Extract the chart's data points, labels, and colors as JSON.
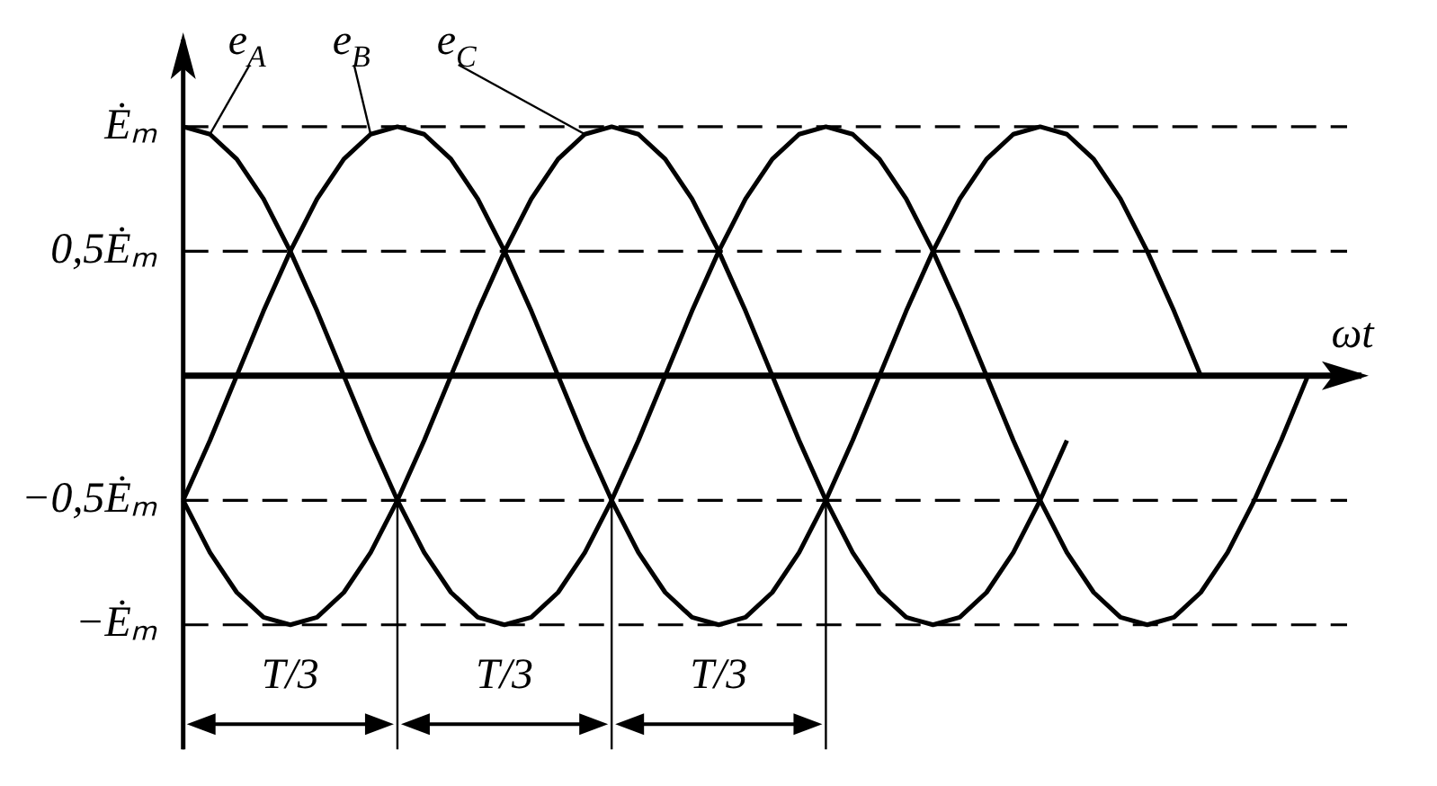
{
  "chart_data": {
    "type": "line",
    "xlabel": "ωt",
    "tick_labels": "y",
    "grid": false,
    "legend": "top left",
    "marker": "none",
    "line_style": "solid",
    "ylim": [
      -1.5,
      1.35
    ],
    "yticks": [
      {
        "value": 1,
        "label": "Ėₘ"
      },
      {
        "value": 0.5,
        "label": "0,5Ėₘ"
      },
      {
        "value": -0.5,
        "label": "−0,5Ėₘ"
      },
      {
        "value": -1,
        "label": "−Ėₘ"
      }
    ],
    "categories": [
      null,
      null,
      null,
      null,
      null,
      null,
      null,
      null,
      null,
      null,
      null,
      null,
      null,
      null,
      null,
      null,
      null,
      null,
      null,
      null,
      null,
      null,
      null,
      null,
      null,
      null,
      null,
      null,
      null,
      null,
      null,
      null,
      null,
      null,
      null,
      null,
      null,
      null,
      null,
      null,
      null,
      null,
      null,
      null,
      null
    ],
    "series": [
      {
        "name": "e$_{A}$",
        "color": "#000000",
        "values": [
          1,
          0.97,
          0.87,
          0.71,
          0.5,
          0.26,
          0,
          -0.26,
          -0.5,
          -0.71,
          -0.87,
          -0.97,
          -1,
          -0.97,
          -0.87,
          -0.71,
          -0.5,
          -0.26,
          0,
          0.26,
          0.5,
          0.71,
          0.87,
          0.97,
          1,
          0.97,
          0.87,
          0.71,
          0.5,
          0.26,
          0,
          -0.26,
          -0.5,
          -0.71,
          -0.87,
          -0.97,
          -1,
          -0.97,
          -0.87,
          -0.71,
          -0.5,
          -0.26,
          0,
          null,
          null
        ]
      },
      {
        "name": "e$_{B}$",
        "color": "#000000",
        "values": [
          -0.5,
          -0.26,
          0,
          0.26,
          0.5,
          0.71,
          0.87,
          0.97,
          1,
          0.97,
          0.87,
          0.71,
          0.5,
          0.26,
          0,
          -0.26,
          -0.5,
          -0.71,
          -0.87,
          -0.97,
          -1,
          -0.97,
          -0.87,
          -0.71,
          -0.5,
          -0.26,
          0,
          0.26,
          0.5,
          0.71,
          0.87,
          0.97,
          1,
          0.97,
          0.87,
          0.71,
          0.5,
          0.26,
          0,
          null,
          null,
          null,
          null,
          null,
          null
        ]
      },
      {
        "name": "e$_{C}$",
        "color": "#000000",
        "values": [
          -0.5,
          -0.71,
          -0.87,
          -0.97,
          -1,
          -0.97,
          -0.87,
          -0.71,
          -0.5,
          -0.26,
          0,
          0.26,
          0.5,
          0.71,
          0.87,
          0.97,
          1,
          0.97,
          0.87,
          0.71,
          0.5,
          0.26,
          0,
          -0.26,
          -0.5,
          -0.71,
          -0.87,
          -0.97,
          -1,
          -0.97,
          -0.87,
          -0.71,
          -0.5,
          -0.26,
          null,
          null,
          null,
          null,
          null,
          null,
          null,
          null,
          null,
          null,
          null
        ]
      }
    ],
    "ref_lines": [
      {
        "axis": "y",
        "value": 1,
        "line_style": "dashed"
      },
      {
        "axis": "y",
        "value": 0.5,
        "line_style": "dashed"
      },
      {
        "axis": "y",
        "value": -0.5,
        "line_style": "dashed"
      },
      {
        "axis": "y",
        "value": -1,
        "line_style": "dashed"
      }
    ],
    "annotations": [
      "T/3",
      "T/3",
      "T/3"
    ]
  }
}
